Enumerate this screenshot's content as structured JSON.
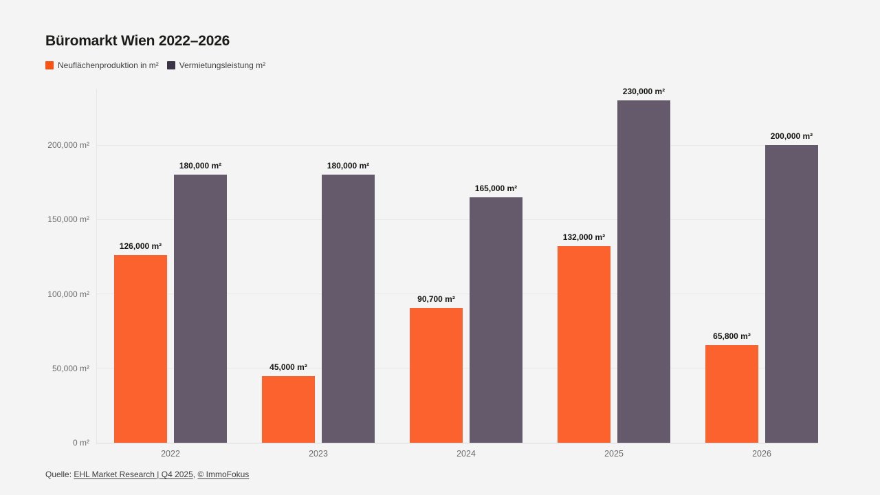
{
  "title": "Büromarkt Wien 2022–2026",
  "legend": {
    "items": [
      {
        "label": "Neuflächenproduktion in m²",
        "color": "#f85215"
      },
      {
        "label": "Vermietungsleistung m²",
        "color": "#3a3444"
      }
    ]
  },
  "footer": {
    "prefix": "Quelle: ",
    "source_link": "EHL Market Research | Q4 2025",
    "separator": ", ",
    "attribution_link": "© ImmoFokus"
  },
  "colors": {
    "background": "#f5f4f4",
    "grid": "#eae9e9",
    "baseline": "#d9d8d8",
    "axis_text": "#6b6b6b",
    "bar_label_text": "#151513"
  },
  "chart_data": {
    "type": "bar",
    "title": "Büromarkt Wien 2022–2026",
    "categories": [
      "2022",
      "2023",
      "2024",
      "2025",
      "2026"
    ],
    "series": [
      {
        "name": "Neuflächenproduktion in m²",
        "color": "#fb622e",
        "values": [
          126000,
          45000,
          90700,
          132000,
          65800
        ],
        "labels": [
          "126,000 m²",
          "45,000 m²",
          "90,700 m²",
          "132,000 m²",
          "65,800 m²"
        ]
      },
      {
        "name": "Vermietungsleistung m²",
        "color": "#655a6b",
        "values": [
          180000,
          180000,
          165000,
          230000,
          200000
        ],
        "labels": [
          "180,000 m²",
          "180,000 m²",
          "165,000 m²",
          "230,000 m²",
          "200,000 m²"
        ]
      }
    ],
    "y_ticks": [
      {
        "value": 0,
        "label": "0 m²"
      },
      {
        "value": 50000,
        "label": "50,000 m²"
      },
      {
        "value": 100000,
        "label": "100,000 m²"
      },
      {
        "value": 150000,
        "label": "150,000 m²"
      },
      {
        "value": 200000,
        "label": "200,000 m²"
      }
    ],
    "ylim": [
      0,
      237500
    ],
    "grid": true,
    "legend_position": "top",
    "xlabel": "",
    "ylabel": ""
  }
}
